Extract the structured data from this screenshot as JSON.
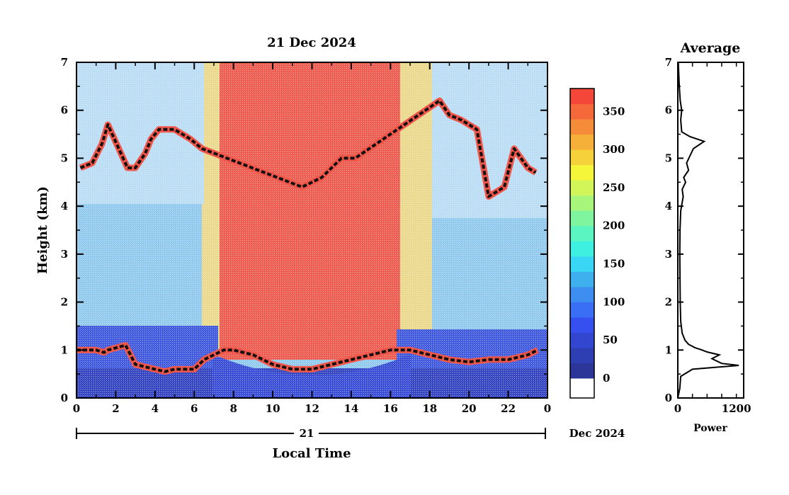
{
  "chart_data": [
    {
      "type": "heatmap",
      "title": "21 Dec 2024",
      "xlabel": "Local Time",
      "ylabel": "Height (km)",
      "xlim": [
        0,
        24
      ],
      "ylim": [
        0,
        7
      ],
      "x_ticks": [
        "0",
        "2",
        "4",
        "6",
        "8",
        "10",
        "12",
        "14",
        "16",
        "18",
        "20",
        "22",
        "0"
      ],
      "y_ticks": [
        "0",
        "1",
        "2",
        "3",
        "4",
        "5",
        "6",
        "7"
      ],
      "date_axis": {
        "day": "21",
        "month_year": "Dec 2024"
      },
      "colorbar": {
        "min": 0,
        "max": 380,
        "tick_labels": [
          "0",
          "50",
          "100",
          "150",
          "200",
          "250",
          "300",
          "350"
        ],
        "tick_values": [
          0,
          50,
          100,
          150,
          200,
          250,
          300,
          350
        ],
        "colors": [
          "#2c3598",
          "#2d3fb2",
          "#3246d0",
          "#3650f0",
          "#3a6ef5",
          "#3d8ef0",
          "#3fb0ee",
          "#39d6f5",
          "#3ef0e0",
          "#5af5c0",
          "#80f5a0",
          "#a8f57c",
          "#d2f55a",
          "#f5f53a",
          "#f5d23a",
          "#f5b03a",
          "#f58c3a",
          "#f5683a",
          "#f5463a"
        ]
      },
      "cloud_base_trace": {
        "description_hidden": true,
        "x": [
          0,
          0.8,
          1.0,
          1.4,
          1.6,
          2.5,
          3.0,
          3.5,
          4.0,
          4.5,
          5.0,
          5.5,
          6.0,
          6.5,
          7.0,
          7.5,
          8.0,
          9.0,
          10.0,
          11.0,
          12.0,
          13.0,
          14.0,
          15.0,
          16.0,
          17.0,
          18.0,
          19.0,
          20.0,
          21.0,
          22.0,
          23.0,
          23.5
        ],
        "y": [
          1.0,
          1.0,
          1.0,
          0.95,
          1.0,
          1.1,
          0.7,
          0.65,
          0.6,
          0.55,
          0.6,
          0.6,
          0.6,
          0.8,
          0.9,
          1.0,
          1.0,
          0.9,
          0.7,
          0.6,
          0.6,
          0.7,
          0.8,
          0.9,
          1.0,
          1.0,
          0.9,
          0.8,
          0.75,
          0.8,
          0.8,
          0.9,
          1.0
        ]
      },
      "upper_cloud_trace": {
        "x": [
          0.2,
          0.8,
          1.3,
          1.6,
          2.6,
          3.0,
          3.5,
          3.8,
          4.2,
          5.0,
          5.8,
          6.4,
          11.5,
          12.5,
          13.5,
          14.2,
          18.5,
          19.0,
          19.6,
          20.4,
          21.0,
          21.8,
          22.3,
          23.0,
          23.4
        ],
        "y": [
          4.8,
          4.9,
          5.3,
          5.7,
          4.8,
          4.8,
          5.1,
          5.4,
          5.6,
          5.6,
          5.4,
          5.2,
          4.4,
          4.6,
          5.0,
          5.0,
          6.2,
          5.9,
          5.8,
          5.6,
          4.2,
          4.4,
          5.2,
          4.8,
          4.7
        ]
      }
    },
    {
      "type": "line",
      "title": "Average",
      "xlabel": "Power",
      "ylabel": "",
      "xlim": [
        0,
        1350
      ],
      "ylim": [
        0,
        7
      ],
      "x_ticks": [
        "0",
        "1200"
      ],
      "y_ticks": [
        "0",
        "1",
        "2",
        "3",
        "4",
        "5",
        "6",
        "7"
      ],
      "series": [
        {
          "values": [
            [
              0,
              0.0
            ],
            [
              40,
              0.2
            ],
            [
              60,
              0.45
            ],
            [
              300,
              0.6
            ],
            [
              1250,
              0.68
            ],
            [
              900,
              0.72
            ],
            [
              700,
              0.82
            ],
            [
              850,
              0.9
            ],
            [
              600,
              0.96
            ],
            [
              500,
              1.0
            ],
            [
              350,
              1.05
            ],
            [
              220,
              1.12
            ],
            [
              150,
              1.2
            ],
            [
              90,
              1.35
            ],
            [
              60,
              1.6
            ],
            [
              50,
              2.0
            ],
            [
              45,
              2.5
            ],
            [
              40,
              3.0
            ],
            [
              45,
              3.5
            ],
            [
              60,
              3.9
            ],
            [
              110,
              4.2
            ],
            [
              90,
              4.35
            ],
            [
              160,
              4.5
            ],
            [
              120,
              4.6
            ],
            [
              220,
              4.75
            ],
            [
              180,
              4.9
            ],
            [
              250,
              5.05
            ],
            [
              320,
              5.2
            ],
            [
              540,
              5.35
            ],
            [
              250,
              5.45
            ],
            [
              80,
              5.55
            ],
            [
              60,
              5.8
            ],
            [
              80,
              6.0
            ],
            [
              50,
              6.2
            ],
            [
              30,
              6.5
            ],
            [
              10,
              7.0
            ]
          ]
        }
      ]
    }
  ]
}
